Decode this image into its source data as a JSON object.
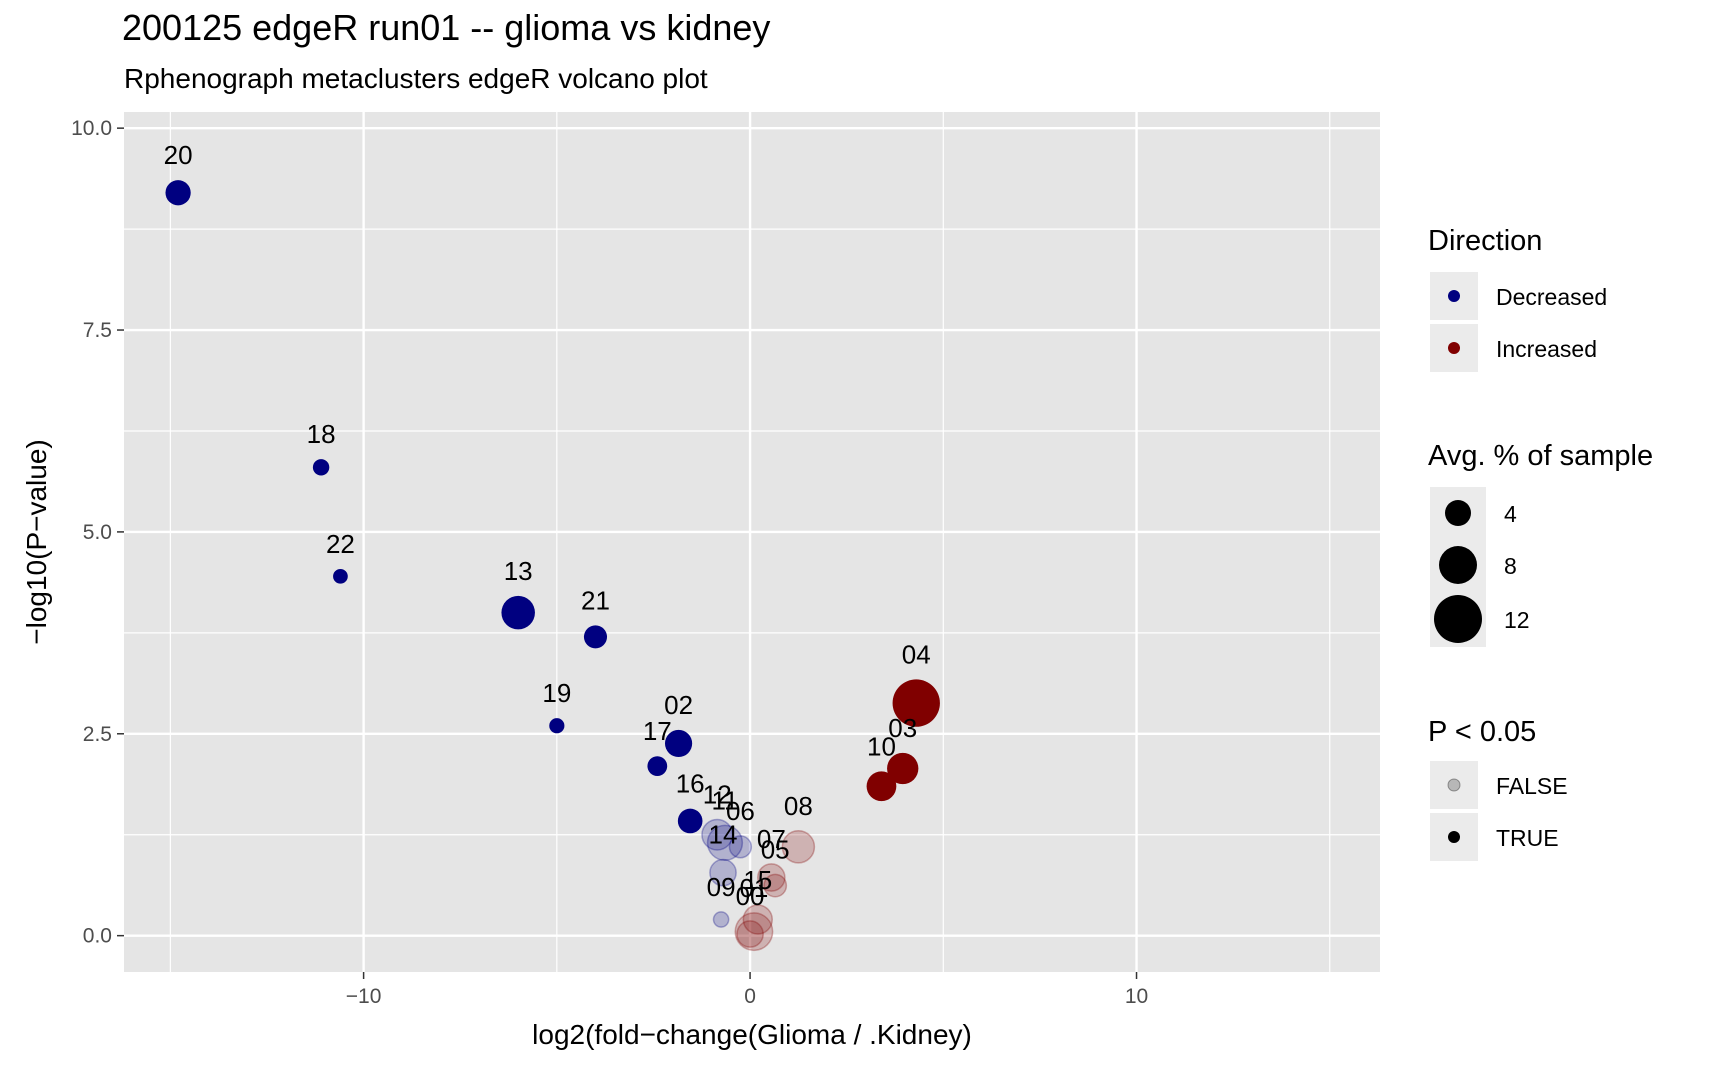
{
  "chart_data": {
    "type": "scatter",
    "title": "200125 edgeR run01 -- glioma vs kidney",
    "subtitle": "Rphenograph metaclusters edgeR volcano plot",
    "xlabel": "log2(fold−change(Glioma / .Kidney)",
    "ylabel": "−log10(P−value)",
    "xlim": [
      -16.2,
      16.3
    ],
    "ylim": [
      -0.45,
      10.2
    ],
    "x_ticks": [
      -10,
      0,
      10
    ],
    "x_tick_labels": [
      "−10",
      "0",
      "10"
    ],
    "y_ticks": [
      0,
      2.5,
      5,
      7.5,
      10
    ],
    "y_tick_labels": [
      "0.0",
      "2.5",
      "5.0",
      "7.5",
      "10.0"
    ],
    "grid": true,
    "colors": {
      "decreased": "#000080",
      "increased": "#800000",
      "panel": "#e5e5e5",
      "grid": "#ffffff"
    },
    "points": [
      {
        "label": "20",
        "x": -14.8,
        "y": 9.2,
        "size": 4.5,
        "direction": "Decreased",
        "sig": true
      },
      {
        "label": "18",
        "x": -11.1,
        "y": 5.8,
        "size": 1.2,
        "direction": "Decreased",
        "sig": true
      },
      {
        "label": "22",
        "x": -10.6,
        "y": 4.45,
        "size": 0.8,
        "direction": "Decreased",
        "sig": true
      },
      {
        "label": "13",
        "x": -6.0,
        "y": 4.0,
        "size": 9.5,
        "direction": "Decreased",
        "sig": true
      },
      {
        "label": "21",
        "x": -4.0,
        "y": 3.7,
        "size": 3.5,
        "direction": "Decreased",
        "sig": true
      },
      {
        "label": "19",
        "x": -5.0,
        "y": 2.6,
        "size": 0.9,
        "direction": "Decreased",
        "sig": true
      },
      {
        "label": "02",
        "x": -1.85,
        "y": 2.38,
        "size": 5.5,
        "direction": "Decreased",
        "sig": true
      },
      {
        "label": "17",
        "x": -2.4,
        "y": 2.1,
        "size": 2.2,
        "direction": "Decreased",
        "sig": true
      },
      {
        "label": "16",
        "x": -1.55,
        "y": 1.42,
        "size": 4.2,
        "direction": "Decreased",
        "sig": true
      },
      {
        "label": "12",
        "x": -0.85,
        "y": 1.25,
        "size": 7.5,
        "direction": "Decreased",
        "sig": false
      },
      {
        "label": "11",
        "x": -0.65,
        "y": 1.15,
        "size": 10.5,
        "direction": "Decreased",
        "sig": false
      },
      {
        "label": "06",
        "x": -0.25,
        "y": 1.1,
        "size": 3.0,
        "direction": "Decreased",
        "sig": false
      },
      {
        "label": "14",
        "x": -0.7,
        "y": 0.78,
        "size": 5.0,
        "direction": "Decreased",
        "sig": false
      },
      {
        "label": "09",
        "x": -0.75,
        "y": 0.2,
        "size": 0.9,
        "direction": "Decreased",
        "sig": false
      },
      {
        "label": "08",
        "x": 1.25,
        "y": 1.1,
        "size": 8.5,
        "direction": "Increased",
        "sig": false
      },
      {
        "label": "07",
        "x": 0.55,
        "y": 0.72,
        "size": 5.5,
        "direction": "Increased",
        "sig": false
      },
      {
        "label": "05",
        "x": 0.65,
        "y": 0.62,
        "size": 3.2,
        "direction": "Increased",
        "sig": false
      },
      {
        "label": "15",
        "x": 0.2,
        "y": 0.2,
        "size": 6.5,
        "direction": "Increased",
        "sig": false
      },
      {
        "label": "01",
        "x": 0.1,
        "y": 0.05,
        "size": 12.5,
        "direction": "Increased",
        "sig": false
      },
      {
        "label": "00",
        "x": 0.0,
        "y": 0.02,
        "size": 5.0,
        "direction": "Increased",
        "sig": false
      },
      {
        "label": "04",
        "x": 4.3,
        "y": 2.88,
        "size": 22.0,
        "direction": "Increased",
        "sig": true
      },
      {
        "label": "03",
        "x": 3.95,
        "y": 2.07,
        "size": 8.0,
        "direction": "Increased",
        "sig": true
      },
      {
        "label": "10",
        "x": 3.4,
        "y": 1.85,
        "size": 7.0,
        "direction": "Increased",
        "sig": true
      }
    ],
    "legend": {
      "placement": "right",
      "direction": {
        "title": "Direction",
        "items": [
          "Decreased",
          "Increased"
        ]
      },
      "size": {
        "title": "Avg. % of sample",
        "items": [
          "4",
          "8",
          "12"
        ],
        "values": [
          4,
          8,
          12
        ]
      },
      "significance": {
        "title": "P < 0.05",
        "items": [
          "FALSE",
          "TRUE"
        ]
      }
    }
  }
}
